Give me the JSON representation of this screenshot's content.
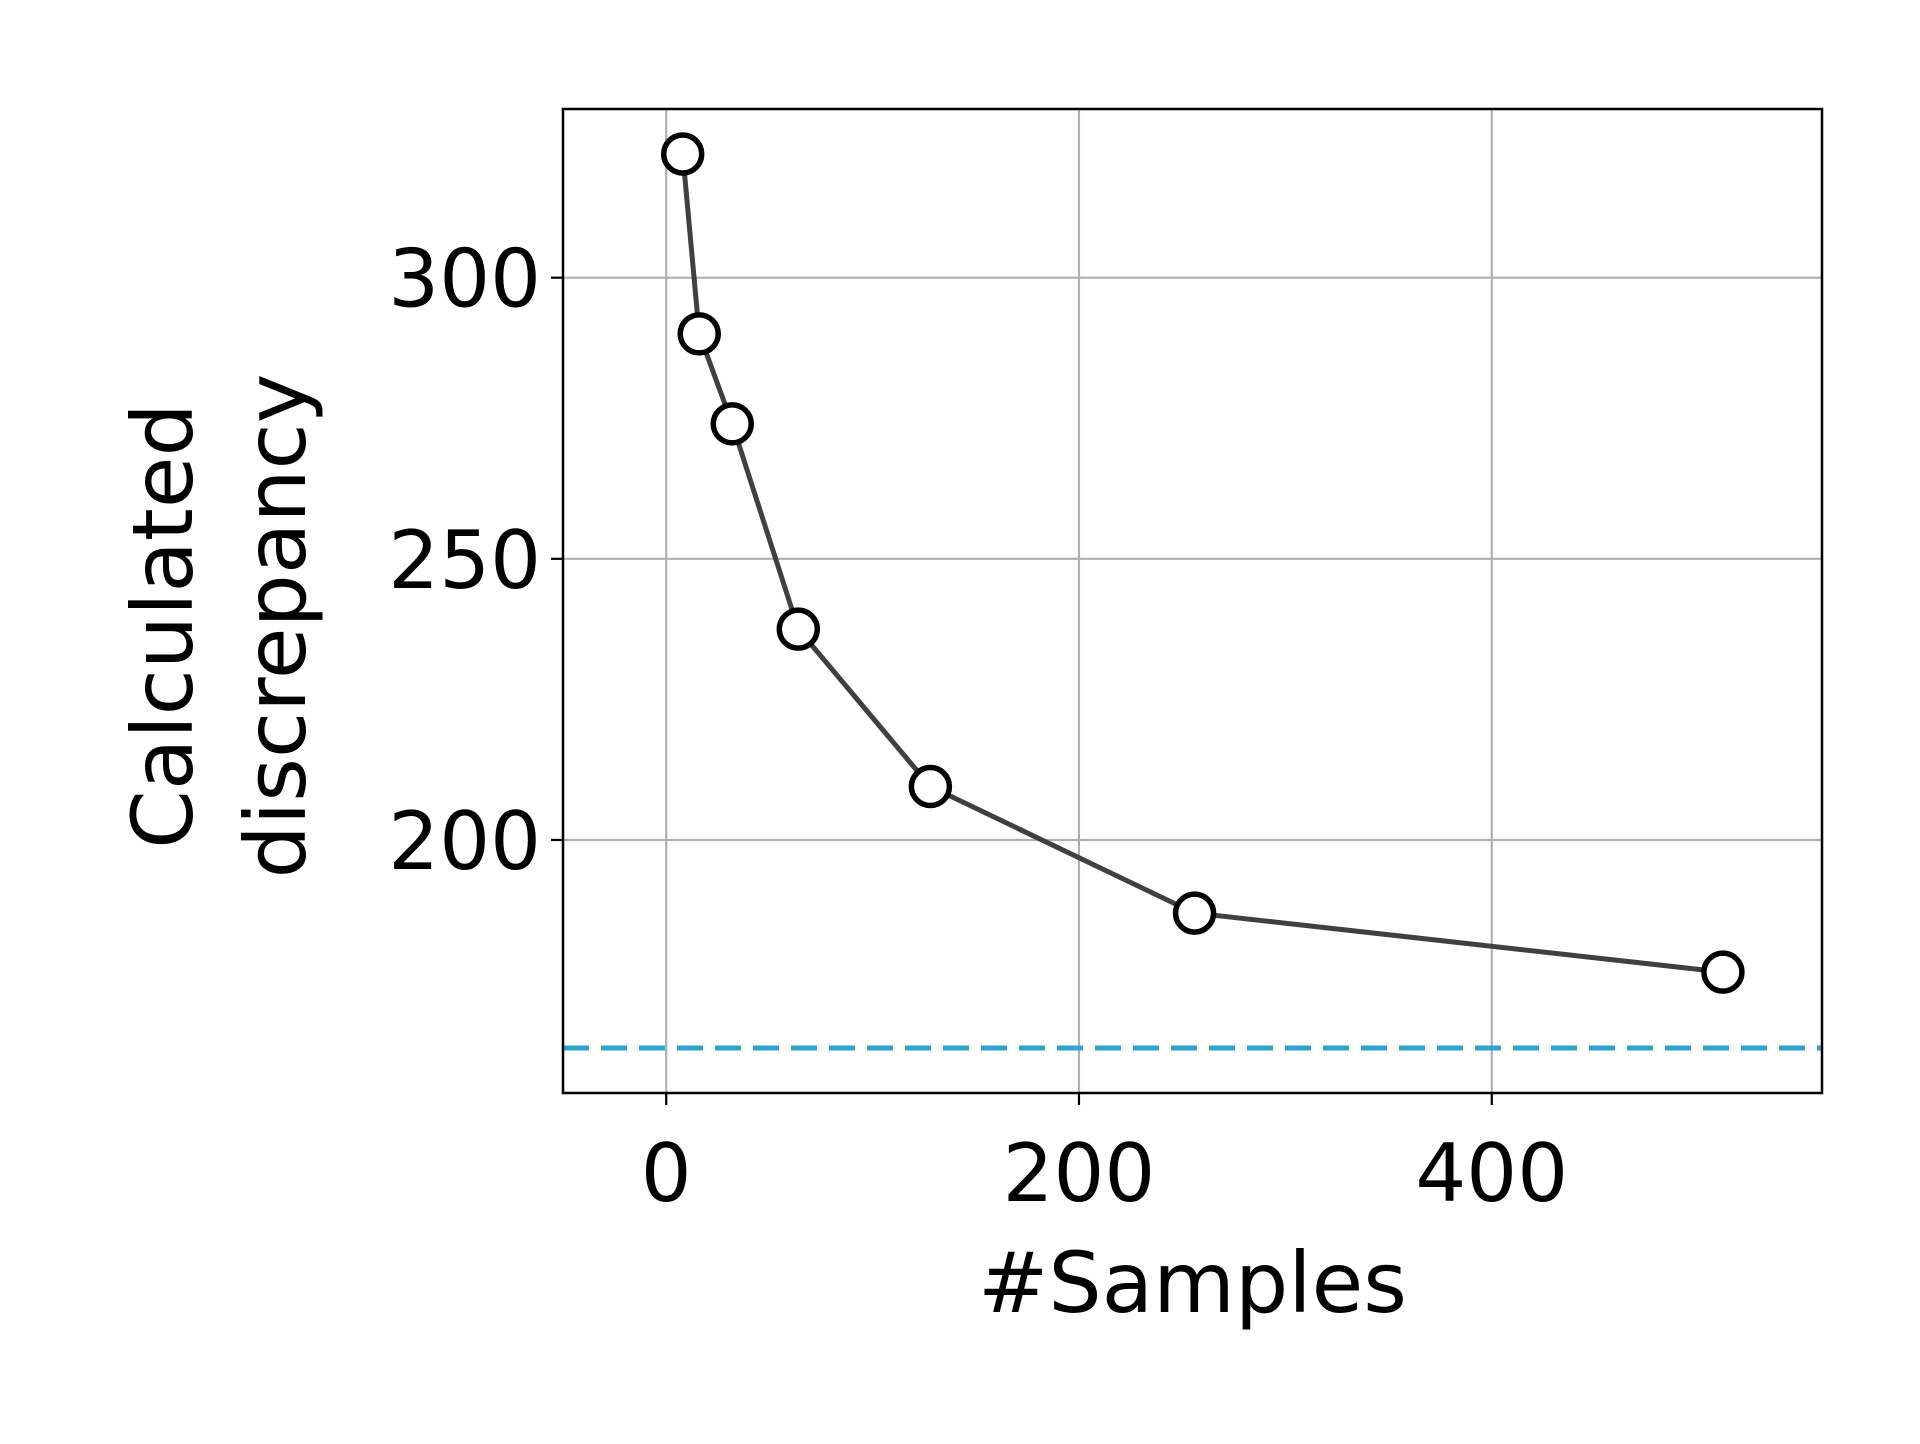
{
  "chart_data": {
    "type": "line",
    "title": "",
    "xlabel": "#Samples",
    "ylabel_lines": [
      "Calculated",
      "discrepancy"
    ],
    "xlim": [
      -50,
      560
    ],
    "ylim": [
      155,
      330
    ],
    "xticks": [
      0,
      200,
      400
    ],
    "yticks": [
      200,
      250,
      300
    ],
    "grid": true,
    "series": [
      {
        "x": [
          8,
          16,
          32,
          64,
          128,
          256,
          512
        ],
        "y": [
          322,
          290,
          274,
          237.5,
          209.5,
          187,
          176.5
        ],
        "color": "#404040",
        "marker": "open-circle",
        "marker_edge_color": "#000000",
        "marker_face_color": "#ffffff"
      }
    ],
    "reference_line": {
      "y": 163,
      "color": "#2ca4cc",
      "style": "dashed"
    }
  }
}
